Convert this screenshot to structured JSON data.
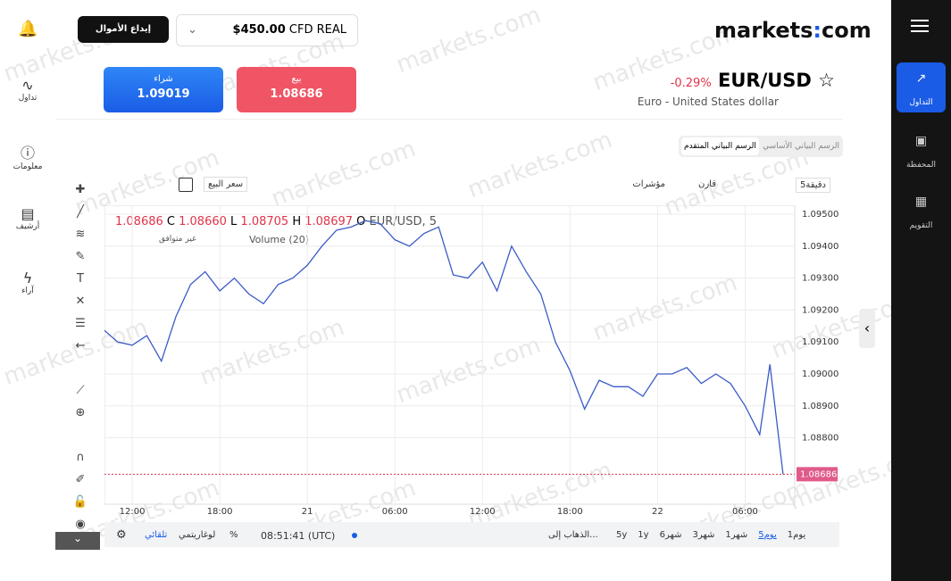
{
  "header": {
    "deposit": "إيداع الأموال",
    "balance": "$450.00",
    "account": "CFD REAL",
    "logo_left": "markets",
    "logo_right": "com"
  },
  "watermark": "markets.com",
  "sidebar": [
    "تداول",
    "معلومات",
    "أرشيف",
    "آراء"
  ],
  "right_nav": [
    "التداول",
    "المحفظة",
    "التقويم"
  ],
  "instrument": {
    "symbol": "EUR/USD",
    "change": "-0.29%",
    "name": "Euro - United States dollar",
    "buy_label": "شراء",
    "buy": "1.09019",
    "sell_label": "بيع",
    "sell": "1.08686"
  },
  "tabs": [
    "الرسم البياني الأساسي",
    "الرسم البياني المتقدم"
  ],
  "toolbar": {
    "interval": "5دقيقة",
    "compare": "قارن",
    "indicators": "مؤشرات",
    "price_type": "سعر البيع"
  },
  "legend": {
    "symbol": "EUR/USD, 5",
    "open": "1.08697",
    "open_key": "O",
    "high": "1.08705",
    "high_key": "H",
    "low": "1.08660",
    "low_key": "L",
    "close": "1.08686",
    "close_key": "C",
    "volume": "Volume (20)",
    "na": "غير متوافق"
  },
  "chart_data": {
    "type": "line",
    "color": "#3a5bc7",
    "x": [
      10,
      11,
      12,
      13,
      14,
      15,
      16,
      17,
      18,
      19,
      20,
      21,
      22,
      23,
      24,
      25,
      26,
      27,
      28,
      29,
      30,
      31,
      32,
      33,
      34,
      35,
      36,
      37,
      38,
      39,
      40,
      41,
      42,
      43,
      44,
      45,
      46,
      47,
      48,
      49,
      50,
      51,
      52,
      53,
      54,
      55,
      55.7,
      56.6
    ],
    "values": [
      1.0914,
      1.091,
      1.0909,
      1.0912,
      1.0904,
      1.0918,
      1.0928,
      1.0932,
      1.0926,
      1.093,
      1.0925,
      1.0922,
      1.0928,
      1.093,
      1.0934,
      1.094,
      1.0945,
      1.0946,
      1.0948,
      1.0947,
      1.0942,
      1.094,
      1.0944,
      1.0946,
      1.0931,
      1.093,
      1.0935,
      1.0926,
      1.094,
      1.0932,
      1.0925,
      1.091,
      1.0901,
      1.0889,
      1.0898,
      1.0896,
      1.0896,
      1.0893,
      1.09,
      1.09,
      1.0902,
      1.0897,
      1.09,
      1.0897,
      1.089,
      1.0881,
      1.0903,
      1.08686
    ],
    "xlim": [
      10.1,
      57.4
    ],
    "xticks": [
      {
        "value": 12,
        "label": "12:00"
      },
      {
        "value": 18,
        "label": "18:00"
      },
      {
        "value": 24,
        "label": "21"
      },
      {
        "value": 30,
        "label": "06:00"
      },
      {
        "value": 36,
        "label": "12:00"
      },
      {
        "value": 42,
        "label": "18:00"
      },
      {
        "value": 48,
        "label": "22"
      },
      {
        "value": 54,
        "label": "06:00"
      }
    ],
    "ylim": [
      1.08592,
      1.09528
    ],
    "yticks": [
      {
        "value": 1.088,
        "label": "1.08800"
      },
      {
        "value": 1.089,
        "label": "1.08900"
      },
      {
        "value": 1.09,
        "label": "1.09000"
      },
      {
        "value": 1.091,
        "label": "1.09100"
      },
      {
        "value": 1.092,
        "label": "1.09200"
      },
      {
        "value": 1.093,
        "label": "1.09300"
      },
      {
        "value": 1.094,
        "label": "1.09400"
      },
      {
        "value": 1.095,
        "label": "1.09500"
      }
    ],
    "grid": true
  },
  "footer": {
    "ranges": [
      "1يوم",
      "5يوم",
      "1شهر",
      "3شهر",
      "6شهر",
      "1y",
      "5y"
    ],
    "goto": "الذهاب إلى...",
    "clock": "08:51:41 (UTC)",
    "percent": "%",
    "log": "لوغاريتمي",
    "auto": "تلقائي"
  }
}
